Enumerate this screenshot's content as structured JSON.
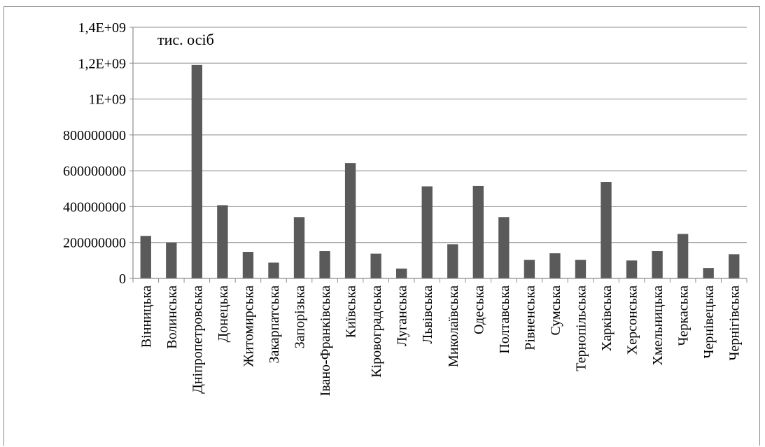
{
  "chart_data": {
    "type": "bar",
    "unit_label": "тис. осіб",
    "categories": [
      "Вінницька",
      "Волинська",
      "Дніпропетровська",
      "Донецька",
      "Житомирська",
      "Закарпатська",
      "Запорізька",
      "Івано-Франківська",
      "Київська",
      "Кіровоградська",
      "Луганська",
      "Львівська",
      "Миколаївська",
      "Одеська",
      "Полтавська",
      "Рівненська",
      "Сумська",
      "Тернопільська",
      "Харківська",
      "Херсонська",
      "Хмельницька",
      "Черкаська",
      "Чернівецька",
      "Чернігівська"
    ],
    "values": [
      237000000,
      200000000,
      1190000000,
      408000000,
      148000000,
      88000000,
      342000000,
      152000000,
      643000000,
      138000000,
      55000000,
      513000000,
      190000000,
      515000000,
      342000000,
      103000000,
      140000000,
      103000000,
      538000000,
      100000000,
      152000000,
      248000000,
      58000000,
      135000000
    ],
    "ylim": [
      0,
      1400000000
    ],
    "yticks": [
      {
        "value": 0,
        "label": "0"
      },
      {
        "value": 200000000,
        "label": "200000000"
      },
      {
        "value": 400000000,
        "label": "400000000"
      },
      {
        "value": 600000000,
        "label": "600000000"
      },
      {
        "value": 800000000,
        "label": "800000000"
      },
      {
        "value": 1000000000,
        "label": "1E+09"
      },
      {
        "value": 1200000000,
        "label": "1,2E+09"
      },
      {
        "value": 1400000000,
        "label": "1,4E+09"
      }
    ],
    "bar_color": "#5a5a5a",
    "grid_color": "#8c8c8c",
    "grid": true,
    "legend": "none"
  }
}
